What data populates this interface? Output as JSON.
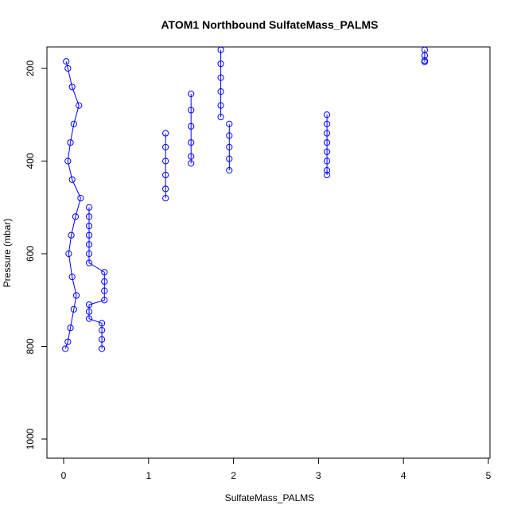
{
  "chart_data": {
    "type": "scatter",
    "title": "ATOM1 Northbound SulfateMass_PALMS",
    "xlabel": "SulfateMass_PALMS",
    "ylabel": "Pressure (mbar)",
    "xlim": [
      0,
      5
    ],
    "ylim": [
      1000,
      200
    ],
    "y_axis_inverted": true,
    "x_ticks": [
      0,
      1,
      2,
      3,
      4,
      5
    ],
    "y_ticks": [
      200,
      400,
      600,
      800,
      1000
    ],
    "grid": false,
    "legend": "none",
    "marker": "open-circle",
    "connected": true,
    "color": "#0000ff",
    "series": [
      {
        "values": [
          {
            "x": 0.02,
            "y": 805
          },
          {
            "x": 0.05,
            "y": 790
          },
          {
            "x": 0.08,
            "y": 760
          },
          {
            "x": 0.12,
            "y": 720
          },
          {
            "x": 0.15,
            "y": 690
          },
          {
            "x": 0.1,
            "y": 650
          },
          {
            "x": 0.06,
            "y": 600
          },
          {
            "x": 0.09,
            "y": 560
          },
          {
            "x": 0.14,
            "y": 520
          },
          {
            "x": 0.2,
            "y": 480
          },
          {
            "x": 0.1,
            "y": 440
          },
          {
            "x": 0.05,
            "y": 400
          },
          {
            "x": 0.08,
            "y": 360
          },
          {
            "x": 0.12,
            "y": 320
          },
          {
            "x": 0.18,
            "y": 280
          },
          {
            "x": 0.1,
            "y": 240
          },
          {
            "x": 0.05,
            "y": 200
          },
          {
            "x": 0.03,
            "y": 185
          }
        ]
      },
      {
        "values": [
          {
            "x": 0.45,
            "y": 805
          },
          {
            "x": 0.45,
            "y": 785
          },
          {
            "x": 0.45,
            "y": 765
          },
          {
            "x": 0.45,
            "y": 750
          },
          {
            "x": 0.3,
            "y": 740
          },
          {
            "x": 0.3,
            "y": 725
          },
          {
            "x": 0.3,
            "y": 710
          },
          {
            "x": 0.48,
            "y": 700
          },
          {
            "x": 0.48,
            "y": 680
          },
          {
            "x": 0.48,
            "y": 660
          },
          {
            "x": 0.48,
            "y": 640
          },
          {
            "x": 0.3,
            "y": 620
          },
          {
            "x": 0.3,
            "y": 600
          },
          {
            "x": 0.3,
            "y": 580
          },
          {
            "x": 0.3,
            "y": 560
          },
          {
            "x": 0.3,
            "y": 540
          },
          {
            "x": 0.3,
            "y": 520
          },
          {
            "x": 0.3,
            "y": 500
          }
        ]
      },
      {
        "values": [
          {
            "x": 3.1,
            "y": 300
          },
          {
            "x": 3.1,
            "y": 320
          },
          {
            "x": 3.1,
            "y": 340
          },
          {
            "x": 3.1,
            "y": 360
          },
          {
            "x": 3.1,
            "y": 380
          },
          {
            "x": 3.1,
            "y": 400
          },
          {
            "x": 3.1,
            "y": 420
          },
          {
            "x": 3.1,
            "y": 430
          }
        ]
      },
      {
        "values": [
          {
            "x": 1.2,
            "y": 340
          },
          {
            "x": 1.2,
            "y": 370
          },
          {
            "x": 1.2,
            "y": 400
          },
          {
            "x": 1.2,
            "y": 430
          },
          {
            "x": 1.2,
            "y": 460
          },
          {
            "x": 1.2,
            "y": 480
          }
        ]
      },
      {
        "values": [
          {
            "x": 1.95,
            "y": 320
          },
          {
            "x": 1.95,
            "y": 345
          },
          {
            "x": 1.95,
            "y": 370
          },
          {
            "x": 1.95,
            "y": 395
          },
          {
            "x": 1.95,
            "y": 420
          }
        ]
      },
      {
        "values": [
          {
            "x": 1.5,
            "y": 255
          },
          {
            "x": 1.5,
            "y": 290
          },
          {
            "x": 1.5,
            "y": 325
          },
          {
            "x": 1.5,
            "y": 360
          },
          {
            "x": 1.5,
            "y": 390
          },
          {
            "x": 1.5,
            "y": 405
          }
        ]
      },
      {
        "values": [
          {
            "x": 1.85,
            "y": 160
          },
          {
            "x": 1.85,
            "y": 190
          },
          {
            "x": 1.85,
            "y": 220
          },
          {
            "x": 1.85,
            "y": 250
          },
          {
            "x": 1.85,
            "y": 280
          },
          {
            "x": 1.85,
            "y": 305
          }
        ]
      },
      {
        "values": [
          {
            "x": 4.25,
            "y": 160
          },
          {
            "x": 4.25,
            "y": 172
          },
          {
            "x": 4.25,
            "y": 183
          },
          {
            "x": 4.25,
            "y": 186
          }
        ]
      }
    ]
  }
}
